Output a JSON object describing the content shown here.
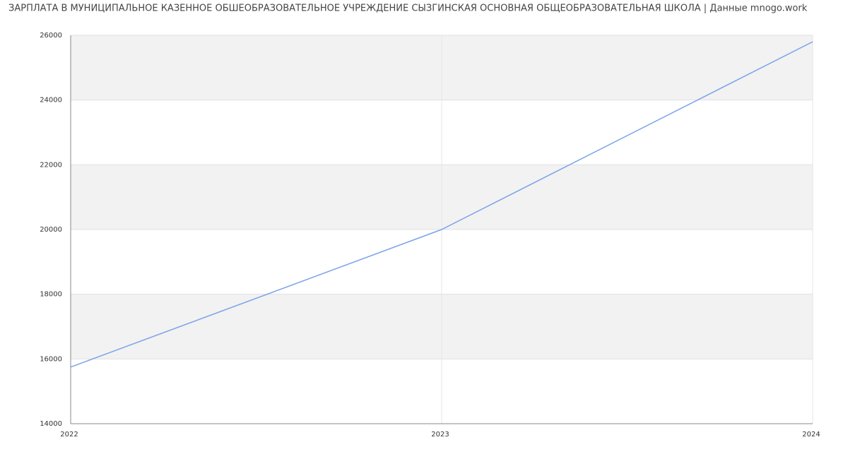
{
  "chart_data": {
    "type": "line",
    "title": "ЗАРПЛАТА В МУНИЦИПАЛЬНОЕ КАЗЕННОЕ ОБШЕОБРАЗОВАТЕЛЬНОЕ УЧРЕЖДЕНИЕ СЫЗГИНСКАЯ ОСНОВНАЯ ОБЩЕОБРАЗОВАТЕЛЬНАЯ ШКОЛА | Данные mnogo.work",
    "x": [
      2022,
      2023,
      2024
    ],
    "series": [
      {
        "color": "#7aa3ea",
        "values": [
          15750,
          20000,
          25800
        ]
      }
    ],
    "xlim": [
      2022,
      2024
    ],
    "xticks": [
      2022,
      2023,
      2024
    ],
    "ylim": [
      14000,
      26000
    ],
    "yticks": [
      14000,
      16000,
      18000,
      20000,
      22000,
      24000,
      26000
    ],
    "grid": true
  }
}
